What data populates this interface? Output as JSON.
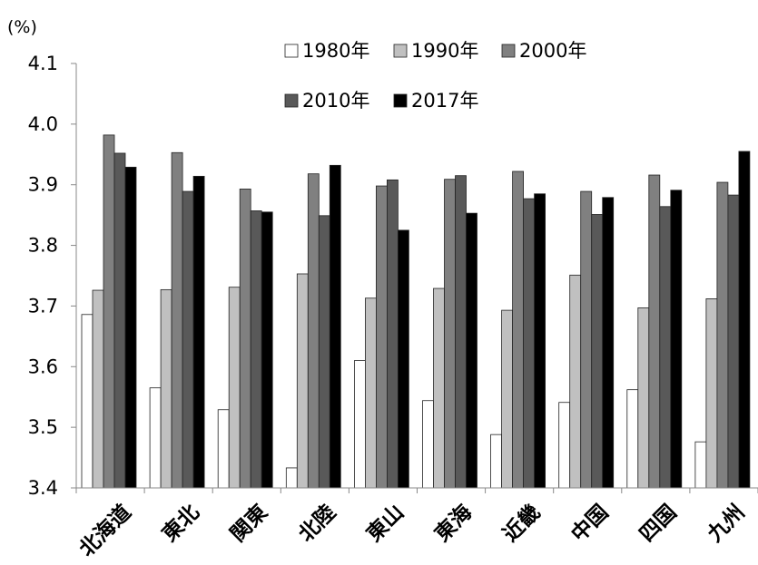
{
  "chart_data": {
    "type": "bar",
    "unit": "(%)",
    "ylim": [
      3.4,
      4.1
    ],
    "yticks": [
      "3.4",
      "3.5",
      "3.6",
      "3.7",
      "3.8",
      "3.9",
      "4.0",
      "4.1"
    ],
    "grid": false,
    "legend_position": "top-right",
    "categories": [
      "北海道",
      "東北",
      "関東",
      "北陸",
      "東山",
      "東海",
      "近畿",
      "中国",
      "四国",
      "九州"
    ],
    "series": [
      {
        "name": "1980年",
        "color": "#ffffff",
        "values": [
          3.686,
          3.565,
          3.529,
          3.433,
          3.61,
          3.544,
          3.488,
          3.541,
          3.562,
          3.476
        ]
      },
      {
        "name": "1990年",
        "color": "#c0c0c0",
        "values": [
          3.726,
          3.727,
          3.731,
          3.753,
          3.713,
          3.729,
          3.693,
          3.751,
          3.697,
          3.712
        ]
      },
      {
        "name": "2000年",
        "color": "#808080",
        "values": [
          3.982,
          3.953,
          3.893,
          3.918,
          3.898,
          3.909,
          3.922,
          3.889,
          3.916,
          3.904
        ]
      },
      {
        "name": "2010年",
        "color": "#595959",
        "values": [
          3.952,
          3.889,
          3.857,
          3.849,
          3.908,
          3.915,
          3.877,
          3.851,
          3.864,
          3.883
        ]
      },
      {
        "name": "2017年",
        "color": "#000000",
        "values": [
          3.929,
          3.914,
          3.855,
          3.932,
          3.825,
          3.853,
          3.885,
          3.879,
          3.891,
          3.955
        ]
      }
    ]
  }
}
